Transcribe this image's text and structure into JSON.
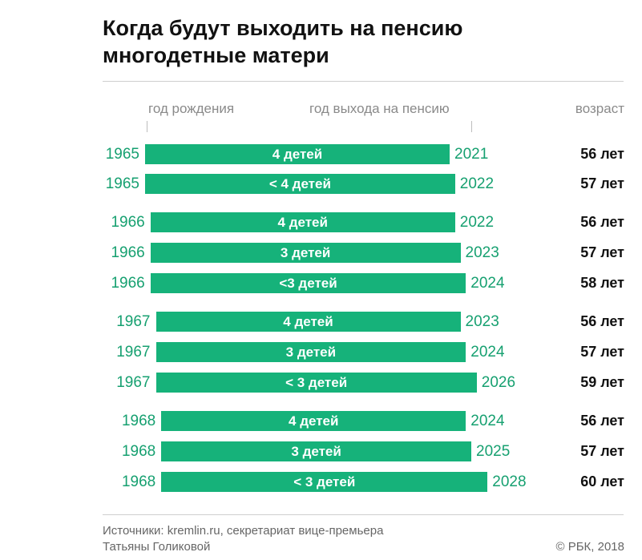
{
  "header": {
    "title_line1": "Когда будут выходить на пенсию",
    "title_line2": "многодетные матери"
  },
  "columns": {
    "birth": "год рождения",
    "retire": "год выхода на пенсию",
    "age": "возраст"
  },
  "footer": {
    "source_line1": "Источники: kremlin.ru, секретариат вице-премьера",
    "source_line2": "Татьяны Голиковой",
    "copyright": "© РБК, 2018"
  },
  "colors": {
    "bar": "#16b27a",
    "year_text": "#16a070"
  },
  "chart_data": {
    "type": "bar",
    "title": "Когда будут выходить на пенсию многодетные матери",
    "x_axis": "год",
    "x_range": [
      1965,
      2028
    ],
    "rows": [
      {
        "birth": "1965",
        "label": "4 детей",
        "retire": "2021",
        "age": "56 лет",
        "birth_year": 1965,
        "retire_year": 2021
      },
      {
        "birth": "1965",
        "label": "< 4 детей",
        "retire": "2022",
        "age": "57 лет",
        "birth_year": 1965,
        "retire_year": 2022
      },
      {
        "birth": "1966",
        "label": "4 детей",
        "retire": "2022",
        "age": "56 лет",
        "birth_year": 1966,
        "retire_year": 2022
      },
      {
        "birth": "1966",
        "label": "3 детей",
        "retire": "2023",
        "age": "57 лет",
        "birth_year": 1966,
        "retire_year": 2023
      },
      {
        "birth": "1966",
        "label": "<3 детей",
        "retire": "2024",
        "age": "58 лет",
        "birth_year": 1966,
        "retire_year": 2024
      },
      {
        "birth": "1967",
        "label": "4 детей",
        "retire": "2023",
        "age": "56 лет",
        "birth_year": 1967,
        "retire_year": 2023
      },
      {
        "birth": "1967",
        "label": "3 детей",
        "retire": "2024",
        "age": "57 лет",
        "birth_year": 1967,
        "retire_year": 2024
      },
      {
        "birth": "1967",
        "label": "< 3 детей",
        "retire": "2026",
        "age": "59 лет",
        "birth_year": 1967,
        "retire_year": 2026
      },
      {
        "birth": "1968",
        "label": "4 детей",
        "retire": "2024",
        "age": "56 лет",
        "birth_year": 1968,
        "retire_year": 2024
      },
      {
        "birth": "1968",
        "label": "3 детей",
        "retire": "2025",
        "age": "57 лет",
        "birth_year": 1968,
        "retire_year": 2025
      },
      {
        "birth": "1968",
        "label": "< 3 детей",
        "retire": "2028",
        "age": "60 лет",
        "birth_year": 1968,
        "retire_year": 2028
      }
    ]
  }
}
